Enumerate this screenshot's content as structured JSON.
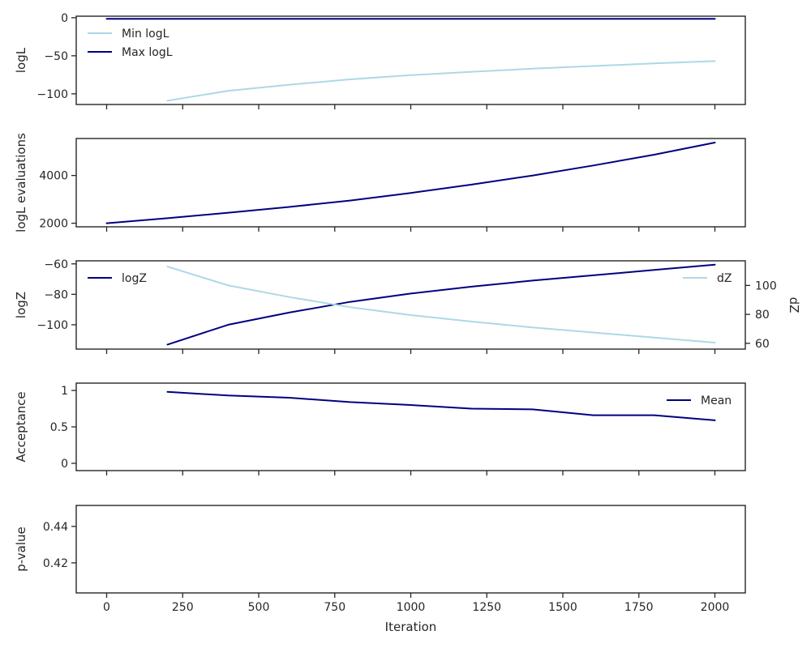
{
  "chart_data": {
    "type": "line",
    "xlabel": "Iteration",
    "xlim": [
      -100,
      2100
    ],
    "xticks": [
      0,
      250,
      500,
      750,
      1000,
      1250,
      1500,
      1750,
      2000
    ],
    "colors": {
      "light": "#add8e6",
      "dark": "#000080"
    },
    "panels": [
      {
        "id": "logl",
        "ylabel": "logL",
        "ylim": [
          -114,
          2
        ],
        "yticks": [
          -100,
          -50,
          0
        ],
        "legend": "top-left",
        "series": [
          {
            "name": "Min logL",
            "color": "#add8e6",
            "axis": "left",
            "x": [
              200,
              400,
              600,
              800,
              1000,
              1200,
              1400,
              1600,
              1800,
              2000
            ],
            "y": [
              -109,
              -96,
              -88,
              -81,
              -75.5,
              -71,
              -67,
              -63.5,
              -60,
              -57
            ]
          },
          {
            "name": "Max logL",
            "color": "#000080",
            "axis": "left",
            "x": [
              0,
              200,
              400,
              600,
              800,
              1000,
              1200,
              1400,
              1600,
              1800,
              2000
            ],
            "y": [
              -1.5,
              -1.5,
              -1.5,
              -1.5,
              -1.5,
              -1.5,
              -1.5,
              -1.5,
              -1.5,
              -1.5,
              -1.5
            ]
          }
        ]
      },
      {
        "id": "evals",
        "ylabel": "logL evaluations",
        "ylim": [
          1850,
          5550
        ],
        "yticks": [
          2000,
          4000
        ],
        "legend": "none",
        "series": [
          {
            "name": "",
            "color": "#000080",
            "axis": "left",
            "x": [
              0,
              200,
              400,
              600,
              800,
              1000,
              1200,
              1400,
              1600,
              1800,
              2000
            ],
            "y": [
              2000,
              2210,
              2440,
              2680,
              2950,
              3270,
              3620,
              4000,
              4420,
              4870,
              5380
            ]
          }
        ]
      },
      {
        "id": "logz",
        "ylabel": "logZ",
        "ylabel_right": "dZ",
        "ylim": [
          -116,
          -58
        ],
        "yticks": [
          -100,
          -80,
          -60
        ],
        "ylim_right": [
          56,
          117
        ],
        "yticks_right": [
          60,
          80,
          100
        ],
        "legend": "top-left / top-right",
        "series": [
          {
            "name": "logZ",
            "color": "#000080",
            "axis": "left",
            "x": [
              200,
              400,
              600,
              800,
              1000,
              1200,
              1400,
              1600,
              1800,
              2000
            ],
            "y": [
              -113,
              -100,
              -92,
              -85,
              -79.5,
              -75,
              -71,
              -67.5,
              -64,
              -60.5
            ]
          },
          {
            "name": "dZ",
            "color": "#add8e6",
            "axis": "right",
            "x": [
              200,
              400,
              600,
              800,
              1000,
              1200,
              1400,
              1600,
              1800,
              2000
            ],
            "y": [
              113,
              100,
              92,
              85,
              79.5,
              75,
              71,
              67.5,
              64,
              60.5
            ]
          }
        ]
      },
      {
        "id": "accept",
        "ylabel": "Acceptance",
        "ylim": [
          -0.1,
          1.1
        ],
        "yticks": [
          0.0,
          0.5,
          1.0
        ],
        "legend": "top-right",
        "series": [
          {
            "name": "Mean",
            "color": "#000080",
            "axis": "left",
            "x": [
              200,
              400,
              600,
              800,
              1000,
              1200,
              1400,
              1600,
              1800,
              2000
            ],
            "y": [
              0.98,
              0.93,
              0.9,
              0.84,
              0.8,
              0.75,
              0.74,
              0.66,
              0.66,
              0.59
            ]
          }
        ]
      },
      {
        "id": "pvalue",
        "ylabel": "p-value",
        "ylim": [
          0.4035,
          0.4515
        ],
        "yticks": [
          0.42,
          0.44
        ],
        "legend": "none",
        "series": []
      }
    ]
  }
}
